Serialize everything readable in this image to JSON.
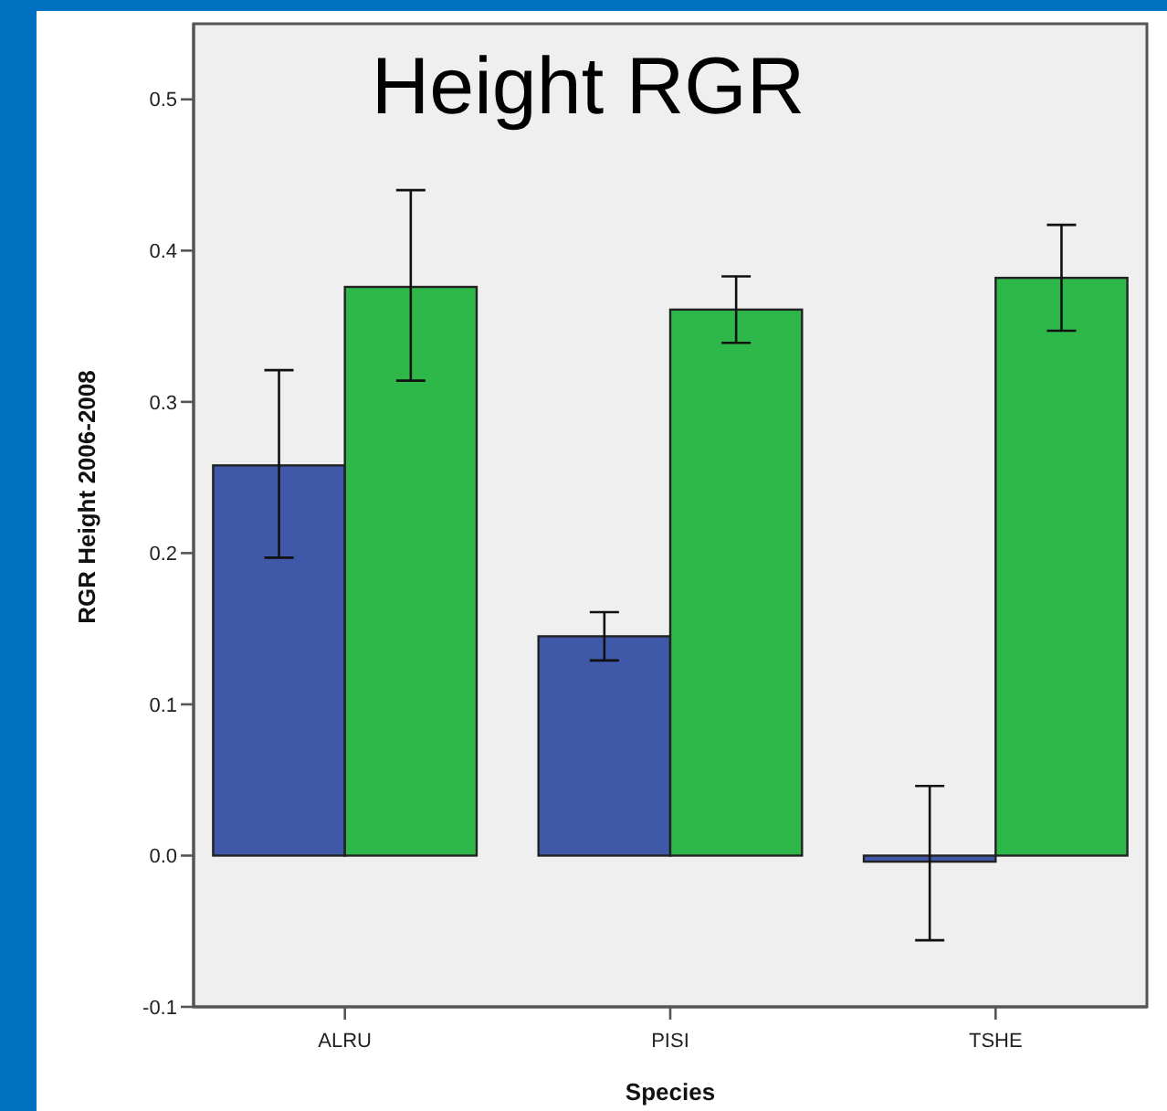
{
  "chart_data": {
    "type": "bar",
    "title": "Height RGR",
    "xlabel": "Species",
    "ylabel": "RGR Height 2006-2008",
    "categories": [
      "ALRU",
      "PISI",
      "TSHE"
    ],
    "series": [
      {
        "color": "#3f58a8",
        "values": [
          0.258,
          0.145,
          -0.004
        ],
        "errors": [
          [
            0.197,
            0.321
          ],
          [
            0.129,
            0.161
          ],
          [
            -0.056,
            0.046
          ]
        ]
      },
      {
        "color": "#2fb84a",
        "values": [
          0.376,
          0.361,
          0.382
        ],
        "errors": [
          [
            0.314,
            0.44
          ],
          [
            0.339,
            0.383
          ],
          [
            0.347,
            0.417
          ]
        ]
      }
    ],
    "ylim": [
      -0.1,
      0.55
    ],
    "yticks": [
      -0.1,
      {
        "value": 0,
        "label": "0.0"
      },
      {
        "value": 0.1,
        "label": "0.1"
      },
      {
        "value": 0.2,
        "label": "0.2"
      },
      {
        "value": 0.3,
        "label": "0.3"
      },
      {
        "value": 0.4,
        "label": "0.4"
      },
      {
        "value": 0.5,
        "label": "0.5"
      }
    ],
    "grid": false
  }
}
